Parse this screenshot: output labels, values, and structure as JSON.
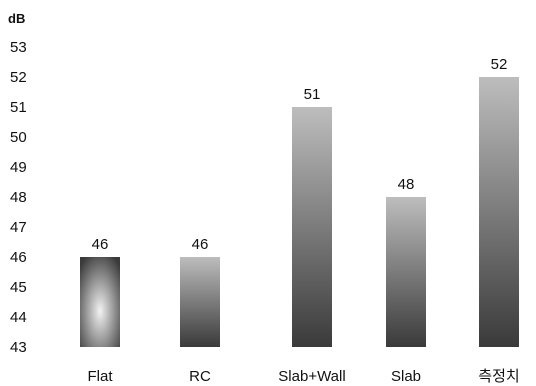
{
  "chart_data": {
    "type": "bar",
    "ylabel": "dB",
    "categories": [
      "Flat",
      "RC",
      "Slab+Wall",
      "Slab",
      "측정치"
    ],
    "values": [
      46,
      46,
      51,
      48,
      52
    ],
    "data_labels": [
      "46",
      "46",
      "51",
      "48",
      "52"
    ],
    "yticks": [
      "43",
      "44",
      "45",
      "46",
      "47",
      "48",
      "49",
      "50",
      "51",
      "52",
      "53"
    ],
    "ylim": [
      43,
      53
    ],
    "grid": false,
    "legend": "none",
    "bar_color_dark": "#3a3a3a",
    "bar_color_light": "#bdbdbd"
  }
}
